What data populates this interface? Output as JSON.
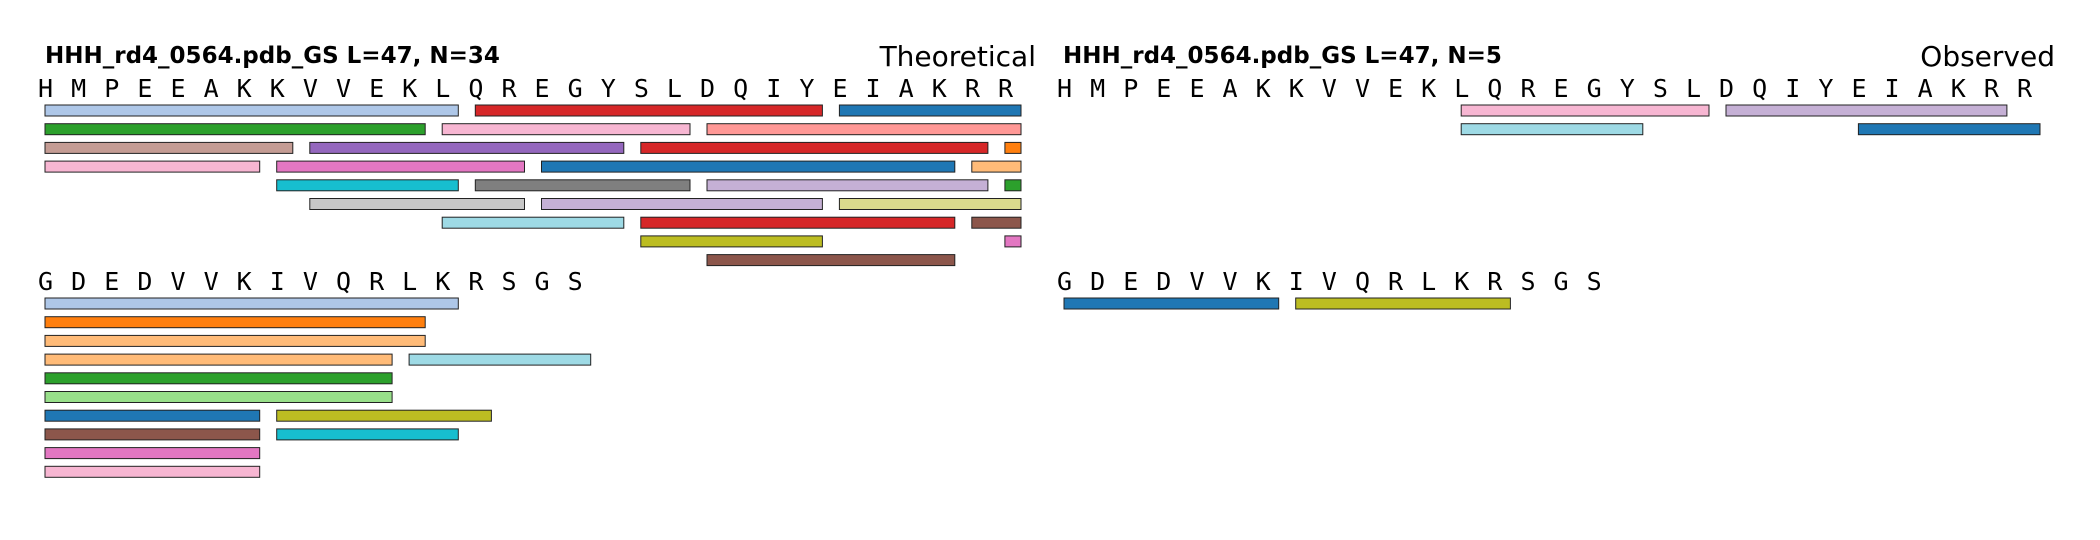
{
  "sequence": "HMPEEAKKVVEKLQREGYSLDQIYEIAKRRGDEDVVKIVQRLKRSGS",
  "colors": {
    "light_blue": "#aec7e8",
    "orange": "#ff7f0e",
    "light_orange": "#ffbb78",
    "green": "#2ca02c",
    "light_green": "#98df8a",
    "red": "#d62728",
    "pink": "#ff9896",
    "purple": "#9467bd",
    "lavender": "#c5b0d5",
    "brown": "#8c564b",
    "tan": "#c49c94",
    "magenta": "#e377c2",
    "light_pink": "#f7b6d2",
    "gray": "#7f7f7f",
    "light_gray": "#c7c7c7",
    "olive": "#bcbd22",
    "khaki": "#dbdb8d",
    "cyan": "#17becf",
    "pale_cyan": "#9edae5",
    "blue": "#1f77b4"
  },
  "panels": [
    {
      "title": "HHH_rd4_0564.pdb_GS  L=47, N=34",
      "label": "Theoretical",
      "blocks": [
        {
          "start": 0,
          "residues": "HMPEEAKKVVEKLQREGYSLDQIYEIAKRR",
          "peptides": [
            {
              "row": 0,
              "start": 0,
              "end": 12,
              "color": "light_blue"
            },
            {
              "row": 0,
              "start": 13,
              "end": 23,
              "color": "red"
            },
            {
              "row": 0,
              "start": 24,
              "end": 29,
              "color": "blue"
            },
            {
              "row": 1,
              "start": 0,
              "end": 11,
              "color": "green"
            },
            {
              "row": 1,
              "start": 12,
              "end": 19,
              "color": "light_pink"
            },
            {
              "row": 1,
              "start": 20,
              "end": 29,
              "color": "pink"
            },
            {
              "row": 2,
              "start": 0,
              "end": 7,
              "color": "tan"
            },
            {
              "row": 2,
              "start": 8,
              "end": 17,
              "color": "purple"
            },
            {
              "row": 2,
              "start": 18,
              "end": 28,
              "color": "red"
            },
            {
              "row": 2,
              "start": 29,
              "end": 29,
              "color": "orange"
            },
            {
              "row": 3,
              "start": 0,
              "end": 6,
              "color": "light_pink"
            },
            {
              "row": 3,
              "start": 7,
              "end": 14,
              "color": "magenta"
            },
            {
              "row": 3,
              "start": 15,
              "end": 27,
              "color": "blue"
            },
            {
              "row": 3,
              "start": 28,
              "end": 29,
              "color": "light_orange"
            },
            {
              "row": 4,
              "start": 7,
              "end": 12,
              "color": "cyan"
            },
            {
              "row": 4,
              "start": 13,
              "end": 19,
              "color": "gray"
            },
            {
              "row": 4,
              "start": 20,
              "end": 28,
              "color": "lavender"
            },
            {
              "row": 4,
              "start": 29,
              "end": 29,
              "color": "green"
            },
            {
              "row": 5,
              "start": 8,
              "end": 14,
              "color": "light_gray"
            },
            {
              "row": 5,
              "start": 15,
              "end": 23,
              "color": "lavender"
            },
            {
              "row": 5,
              "start": 24,
              "end": 29,
              "color": "khaki"
            },
            {
              "row": 6,
              "start": 12,
              "end": 17,
              "color": "pale_cyan"
            },
            {
              "row": 6,
              "start": 18,
              "end": 27,
              "color": "red"
            },
            {
              "row": 6,
              "start": 28,
              "end": 29,
              "color": "brown"
            },
            {
              "row": 7,
              "start": 18,
              "end": 23,
              "color": "olive"
            },
            {
              "row": 7,
              "start": 29,
              "end": 29,
              "color": "magenta"
            },
            {
              "row": 8,
              "start": 20,
              "end": 27,
              "color": "brown"
            }
          ]
        },
        {
          "start": 30,
          "residues": "GDEDVVKIVQRLKRSGS",
          "peptides": [
            {
              "row": 0,
              "start": 0,
              "end": 12,
              "color": "light_blue"
            },
            {
              "row": 1,
              "start": 0,
              "end": 11,
              "color": "orange"
            },
            {
              "row": 2,
              "start": 0,
              "end": 11,
              "color": "light_orange"
            },
            {
              "row": 3,
              "start": 0,
              "end": 10,
              "color": "light_orange"
            },
            {
              "row": 3,
              "start": 11,
              "end": 16,
              "color": "pale_cyan"
            },
            {
              "row": 4,
              "start": 0,
              "end": 10,
              "color": "green"
            },
            {
              "row": 5,
              "start": 0,
              "end": 10,
              "color": "light_green"
            },
            {
              "row": 6,
              "start": 0,
              "end": 6,
              "color": "blue"
            },
            {
              "row": 6,
              "start": 7,
              "end": 13,
              "color": "olive"
            },
            {
              "row": 7,
              "start": 0,
              "end": 6,
              "color": "brown"
            },
            {
              "row": 7,
              "start": 7,
              "end": 12,
              "color": "cyan"
            },
            {
              "row": 8,
              "start": 0,
              "end": 6,
              "color": "magenta"
            },
            {
              "row": 9,
              "start": 0,
              "end": 6,
              "color": "light_pink"
            }
          ]
        }
      ]
    },
    {
      "title": "HHH_rd4_0564.pdb_GS  L=47, N=5",
      "label": "Observed",
      "blocks": [
        {
          "start": 0,
          "residues": "HMPEEAKKVVEKLQREGYSLDQIYEIAKRR",
          "peptides": [
            {
              "row": 0,
              "start": 12,
              "end": 19,
              "color": "light_pink"
            },
            {
              "row": 0,
              "start": 20,
              "end": 28,
              "color": "lavender"
            },
            {
              "row": 1,
              "start": 12,
              "end": 17,
              "color": "pale_cyan"
            },
            {
              "row": 1,
              "start": 24,
              "end": 29,
              "color": "blue"
            }
          ]
        },
        {
          "start": 30,
          "residues": "GDEDVVKIVQRLKRSGS",
          "peptides": [
            {
              "row": 0,
              "start": 0,
              "end": 6,
              "color": "blue"
            },
            {
              "row": 0,
              "start": 7,
              "end": 13,
              "color": "olive"
            }
          ]
        }
      ]
    }
  ]
}
